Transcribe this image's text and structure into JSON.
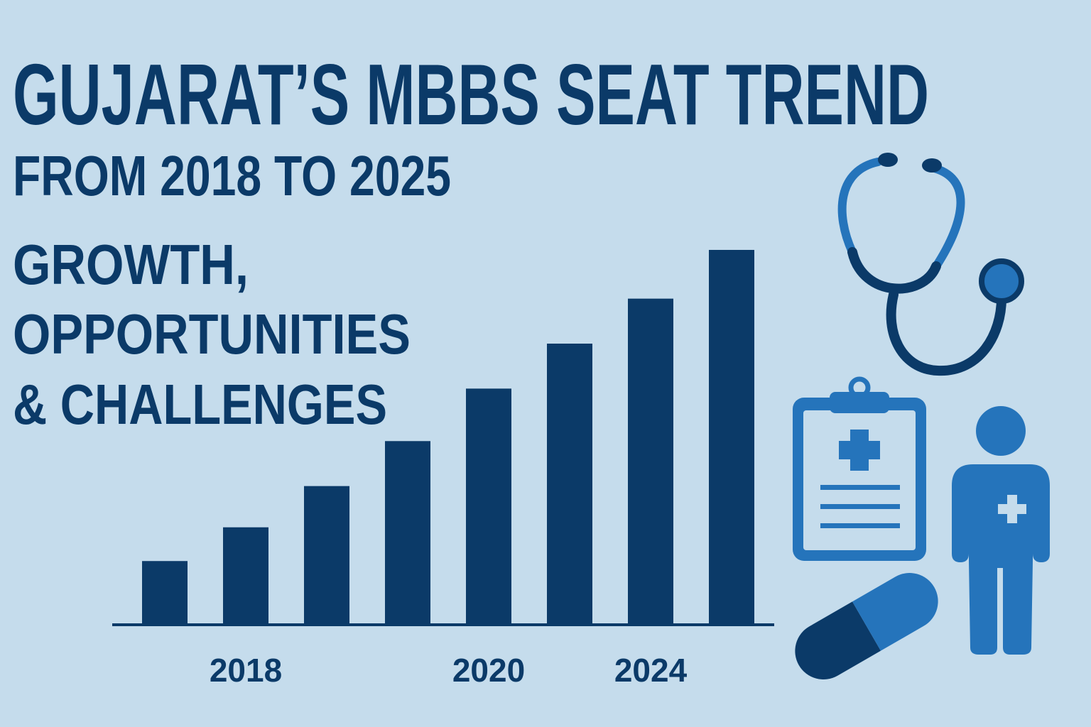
{
  "chart_data": {
    "type": "bar",
    "title": "GUJARAT’S MBBS SEAT TREND",
    "subtitle": "FROM 2018 TO 2025",
    "annotations": [
      "GROWTH,",
      "OPPORTUNITIES",
      "& CHALLENGES"
    ],
    "categories": [
      null,
      "2018",
      null,
      null,
      "2020",
      null,
      "2024",
      null
    ],
    "values": [
      17,
      26,
      37,
      49,
      63,
      75,
      87,
      100
    ],
    "ylim": [
      0,
      100
    ],
    "color": "#0b3a68"
  }
}
